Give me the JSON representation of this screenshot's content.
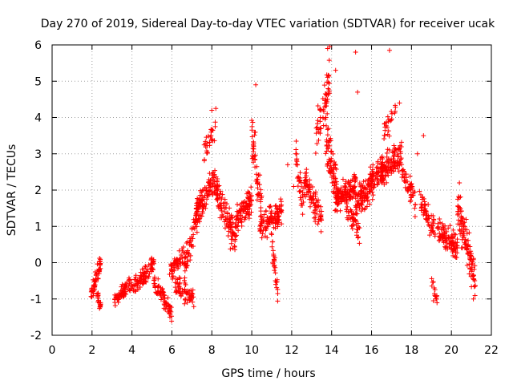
{
  "chart_data": {
    "type": "scatter",
    "title": "Day 270 of 2019, Sidereal Day-to-day VTEC variation (SDTVAR) for receiver ucak",
    "xlabel": "GPS time / hours",
    "ylabel": "SDTVAR / TECUs",
    "xlim": [
      0,
      22
    ],
    "ylim": [
      -2,
      6
    ],
    "xticks": [
      0,
      2,
      4,
      6,
      8,
      10,
      12,
      14,
      16,
      18,
      20,
      22
    ],
    "yticks": [
      -2,
      -1,
      0,
      1,
      2,
      3,
      4,
      5,
      6
    ],
    "x_tick_labels": [
      "0",
      "2",
      "4",
      "6",
      "8",
      "10",
      "12",
      "14",
      "16",
      "18",
      "20",
      "22"
    ],
    "y_tick_labels": [
      "-2",
      "-1",
      "0",
      "1",
      "2",
      "3",
      "4",
      "5",
      "6"
    ],
    "grid": true,
    "marker": "+",
    "series": [
      {
        "name": "ucak",
        "color": "#ff0000",
        "segments": [
          {
            "x_range": [
              1.95,
              2.45
            ],
            "y_center": -1.0,
            "spread": 0.35,
            "n": 55,
            "trend": [
              -0.9,
              0.0
            ]
          },
          {
            "x_range": [
              2.25,
              2.45
            ],
            "y_center": -1.05,
            "spread": 0.25,
            "n": 20,
            "trend": [
              -0.9,
              -1.2
            ]
          },
          {
            "x_range": [
              3.1,
              4.0
            ],
            "y_center": -0.85,
            "spread": 0.3,
            "n": 70,
            "trend": [
              -1.1,
              -0.55
            ]
          },
          {
            "x_range": [
              4.0,
              5.1
            ],
            "y_center": -0.5,
            "spread": 0.35,
            "n": 90,
            "trend": [
              -0.7,
              -0.05
            ]
          },
          {
            "x_range": [
              5.1,
              5.6
            ],
            "y_center": -0.75,
            "spread": 0.35,
            "n": 40,
            "trend": [
              -0.6,
              -0.9
            ]
          },
          {
            "x_range": [
              5.6,
              6.0
            ],
            "y_center": -1.15,
            "spread": 0.3,
            "n": 35,
            "trend": [
              -1.0,
              -1.45
            ]
          },
          {
            "x_range": [
              5.8,
              6.6
            ],
            "y_center": 0.05,
            "spread": 0.3,
            "n": 50,
            "trend": [
              -0.3,
              0.25
            ]
          },
          {
            "x_range": [
              6.0,
              7.1
            ],
            "y_center": -0.7,
            "spread": 0.45,
            "n": 70,
            "trend": [
              -0.5,
              -1.0
            ]
          },
          {
            "x_range": [
              6.6,
              7.4
            ],
            "y_center": 0.6,
            "spread": 0.6,
            "n": 70,
            "trend": [
              -0.2,
              1.6
            ]
          },
          {
            "x_range": [
              7.2,
              8.2
            ],
            "y_center": 2.0,
            "spread": 0.55,
            "n": 110,
            "trend": [
              1.4,
              2.3
            ]
          },
          {
            "x_range": [
              7.6,
              8.2
            ],
            "y_center": 3.3,
            "spread": 0.5,
            "n": 30,
            "trend": [
              3.0,
              3.6
            ]
          },
          {
            "x_range": [
              8.2,
              9.2
            ],
            "y_center": 1.2,
            "spread": 0.7,
            "n": 110,
            "trend": [
              2.0,
              0.6
            ]
          },
          {
            "x_range": [
              9.2,
              10.0
            ],
            "y_center": 1.5,
            "spread": 0.6,
            "n": 90,
            "trend": [
              1.2,
              1.7
            ]
          },
          {
            "x_range": [
              10.0,
              10.5
            ],
            "y_center": 2.4,
            "spread": 1.0,
            "n": 55,
            "trend": [
              3.5,
              1.5
            ]
          },
          {
            "x_range": [
              10.4,
              11.5
            ],
            "y_center": 1.2,
            "spread": 0.5,
            "n": 110,
            "trend": [
              1.0,
              1.4
            ]
          },
          {
            "x_range": [
              10.9,
              11.3
            ],
            "y_center": 0.3,
            "spread": 0.5,
            "n": 30,
            "trend": [
              1.0,
              -0.8
            ]
          },
          {
            "x_range": [
              12.2,
              12.6
            ],
            "y_center": 2.3,
            "spread": 0.8,
            "n": 35,
            "trend": [
              3.1,
              1.4
            ]
          },
          {
            "x_range": [
              12.6,
              13.5
            ],
            "y_center": 1.9,
            "spread": 0.6,
            "n": 90,
            "trend": [
              2.3,
              1.2
            ]
          },
          {
            "x_range": [
              13.2,
              13.9
            ],
            "y_center": 3.8,
            "spread": 0.8,
            "n": 60,
            "trend": [
              3.5,
              5.0
            ]
          },
          {
            "x_range": [
              13.7,
              14.3
            ],
            "y_center": 2.5,
            "spread": 0.9,
            "n": 80,
            "trend": [
              3.5,
              1.8
            ]
          },
          {
            "x_range": [
              14.2,
              15.2
            ],
            "y_center": 1.9,
            "spread": 0.5,
            "n": 120,
            "trend": [
              1.7,
              2.1
            ]
          },
          {
            "x_range": [
              14.7,
              15.4
            ],
            "y_center": 1.2,
            "spread": 0.4,
            "n": 40,
            "trend": [
              1.5,
              0.8
            ]
          },
          {
            "x_range": [
              15.2,
              16.2
            ],
            "y_center": 2.0,
            "spread": 0.7,
            "n": 120,
            "trend": [
              1.6,
              2.4
            ]
          },
          {
            "x_range": [
              16.2,
              17.5
            ],
            "y_center": 2.8,
            "spread": 0.6,
            "n": 150,
            "trend": [
              2.3,
              3.0
            ]
          },
          {
            "x_range": [
              16.6,
              17.2
            ],
            "y_center": 3.9,
            "spread": 0.5,
            "n": 25,
            "trend": [
              3.5,
              4.2
            ]
          },
          {
            "x_range": [
              17.5,
              18.2
            ],
            "y_center": 1.9,
            "spread": 0.5,
            "n": 50,
            "trend": [
              2.5,
              1.7
            ]
          },
          {
            "x_range": [
              18.4,
              19.2
            ],
            "y_center": 1.2,
            "spread": 0.5,
            "n": 60,
            "trend": [
              1.7,
              0.9
            ]
          },
          {
            "x_range": [
              19.0,
              19.3
            ],
            "y_center": -0.8,
            "spread": 0.3,
            "n": 15,
            "trend": [
              -0.5,
              -1.0
            ]
          },
          {
            "x_range": [
              19.3,
              20.3
            ],
            "y_center": 0.5,
            "spread": 0.5,
            "n": 110,
            "trend": [
              0.9,
              0.4
            ]
          },
          {
            "x_range": [
              20.3,
              21.2
            ],
            "y_center": 0.6,
            "spread": 0.8,
            "n": 110,
            "trend": [
              1.6,
              -0.5
            ]
          }
        ],
        "outliers": [
          {
            "x": 13.8,
            "y": 5.9
          },
          {
            "x": 13.9,
            "y": 5.95
          },
          {
            "x": 15.2,
            "y": 5.8
          },
          {
            "x": 16.9,
            "y": 5.85
          },
          {
            "x": 10.2,
            "y": 4.9
          },
          {
            "x": 14.2,
            "y": 5.3
          },
          {
            "x": 15.3,
            "y": 4.7
          },
          {
            "x": 17.4,
            "y": 4.4
          },
          {
            "x": 8.0,
            "y": 4.2
          },
          {
            "x": 8.2,
            "y": 4.25
          },
          {
            "x": 11.3,
            "y": -0.85
          },
          {
            "x": 11.2,
            "y": -0.6
          },
          {
            "x": 18.3,
            "y": 3.0
          },
          {
            "x": 18.6,
            "y": 3.5
          },
          {
            "x": 20.4,
            "y": 2.2
          },
          {
            "x": 12.1,
            "y": 2.1
          },
          {
            "x": 11.8,
            "y": 2.7
          },
          {
            "x": 5.9,
            "y": -1.5
          },
          {
            "x": 21.1,
            "y": -1.0
          },
          {
            "x": 19.1,
            "y": -1.05
          }
        ]
      }
    ]
  }
}
